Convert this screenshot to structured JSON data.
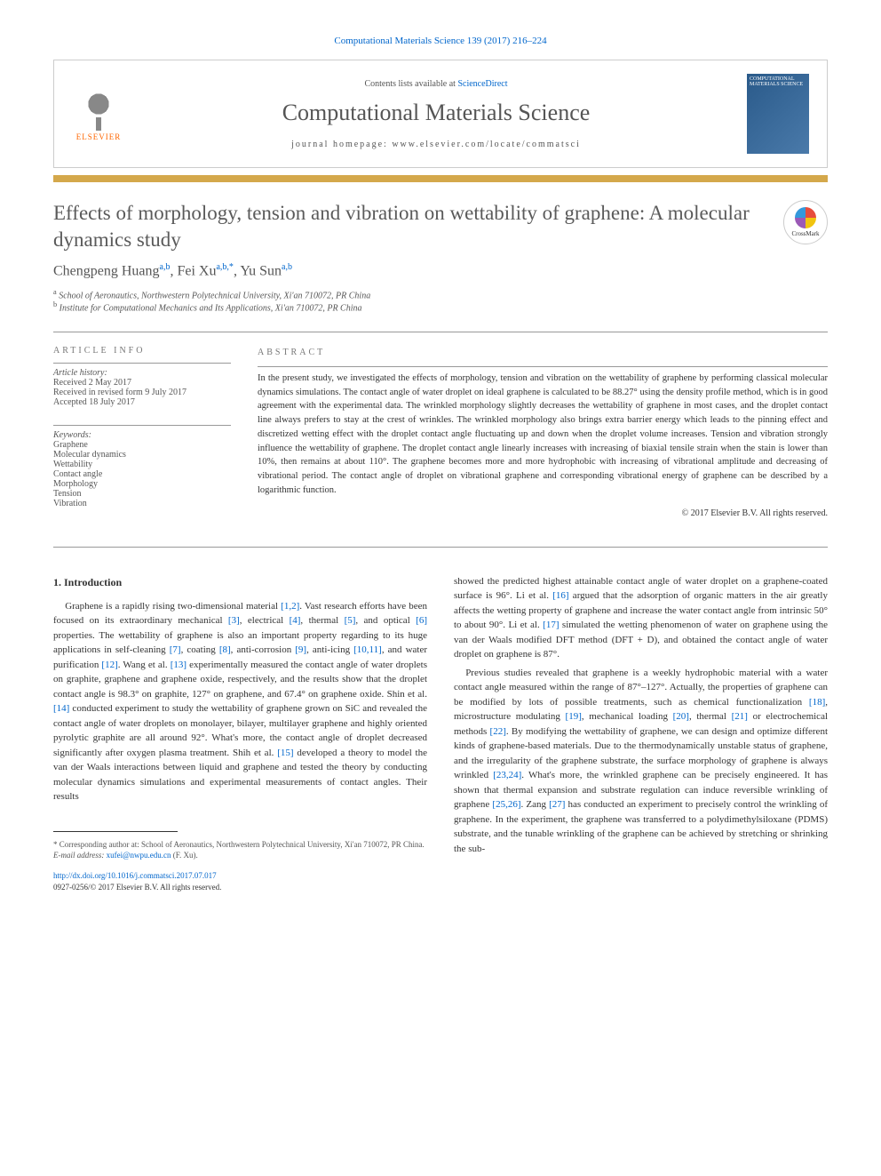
{
  "citation": "Computational Materials Science 139 (2017) 216–224",
  "banner": {
    "contents_prefix": "Contents lists available at ",
    "contents_link": "ScienceDirect",
    "journal_name": "Computational Materials Science",
    "homepage_prefix": "journal homepage: ",
    "homepage_url": "www.elsevier.com/locate/commatsci",
    "publisher": "ELSEVIER",
    "cover_label": "COMPUTATIONAL MATERIALS SCIENCE"
  },
  "title": "Effects of morphology, tension and vibration on wettability of graphene: A molecular dynamics study",
  "crossmark_label": "CrossMark",
  "authors_html": "Chengpeng Huang",
  "authors": [
    {
      "name": "Chengpeng Huang",
      "affs": "a,b"
    },
    {
      "name": "Fei Xu",
      "affs": "a,b,*"
    },
    {
      "name": "Yu Sun",
      "affs": "a,b"
    }
  ],
  "affiliations": [
    {
      "sup": "a",
      "text": "School of Aeronautics, Northwestern Polytechnical University, Xi'an 710072, PR China"
    },
    {
      "sup": "b",
      "text": "Institute for Computational Mechanics and Its Applications, Xi'an 710072, PR China"
    }
  ],
  "article_info": {
    "heading": "article info",
    "history_label": "Article history:",
    "received": "Received 2 May 2017",
    "revised": "Received in revised form 9 July 2017",
    "accepted": "Accepted 18 July 2017",
    "keywords_label": "Keywords:",
    "keywords": [
      "Graphene",
      "Molecular dynamics",
      "Wettability",
      "Contact angle",
      "Morphology",
      "Tension",
      "Vibration"
    ]
  },
  "abstract": {
    "heading": "abstract",
    "text": "In the present study, we investigated the effects of morphology, tension and vibration on the wettability of graphene by performing classical molecular dynamics simulations. The contact angle of water droplet on ideal graphene is calculated to be 88.27° using the density profile method, which is in good agreement with the experimental data. The wrinkled morphology slightly decreases the wettability of graphene in most cases, and the droplet contact line always prefers to stay at the crest of wrinkles. The wrinkled morphology also brings extra barrier energy which leads to the pinning effect and discretized wetting effect with the droplet contact angle fluctuating up and down when the droplet volume increases. Tension and vibration strongly influence the wettability of graphene. The droplet contact angle linearly increases with increasing of biaxial tensile strain when the stain is lower than 10%, then remains at about 110°. The graphene becomes more and more hydrophobic with increasing of vibrational amplitude and decreasing of vibrational period. The contact angle of droplet on vibrational graphene and corresponding vibrational energy of graphene can be described by a logarithmic function.",
    "copyright": "© 2017 Elsevier B.V. All rights reserved."
  },
  "body": {
    "section_num": "1.",
    "section_title": "Introduction",
    "left_col": "Graphene is a rapidly rising two-dimensional material [1,2]. Vast research efforts have been focused on its extraordinary mechanical [3], electrical [4], thermal [5], and optical [6] properties. The wettability of graphene is also an important property regarding to its huge applications in self-cleaning [7], coating [8], anti-corrosion [9], anti-icing [10,11], and water purification [12]. Wang et al. [13] experimentally measured the contact angle of water droplets on graphite, graphene and graphene oxide, respectively, and the results show that the droplet contact angle is 98.3° on graphite, 127° on graphene, and 67.4° on graphene oxide. Shin et al. [14] conducted experiment to study the wettability of graphene grown on SiC and revealed the contact angle of water droplets on monolayer, bilayer, multilayer graphene and highly oriented pyrolytic graphite are all around 92°. What's more, the contact angle of droplet decreased significantly after oxygen plasma treatment. Shih et al. [15] developed a theory to model the van der Waals interactions between liquid and graphene and tested the theory by conducting molecular dynamics simulations and experimental measurements of contact angles. Their results",
    "right_col_p1": "showed the predicted highest attainable contact angle of water droplet on a graphene-coated surface is 96°. Li et al. [16] argued that the adsorption of organic matters in the air greatly affects the wetting property of graphene and increase the water contact angle from intrinsic 50° to about 90°. Li et al. [17] simulated the wetting phenomenon of water on graphene using the van der Waals modified DFT method (DFT + D), and obtained the contact angle of water droplet on graphene is 87°.",
    "right_col_p2": "Previous studies revealed that graphene is a weekly hydrophobic material with a water contact angle measured within the range of 87°–127°. Actually, the properties of graphene can be modified by lots of possible treatments, such as chemical functionalization [18], microstructure modulating [19], mechanical loading [20], thermal [21] or electrochemical methods [22]. By modifying the wettability of graphene, we can design and optimize different kinds of graphene-based materials. Due to the thermodynamically unstable status of graphene, and the irregularity of the graphene substrate, the surface morphology of graphene is always wrinkled [23,24]. What's more, the wrinkled graphene can be precisely engineered. It has shown that thermal expansion and substrate regulation can induce reversible wrinkling of graphene [25,26]. Zang [27] has conducted an experiment to precisely control the wrinkling of graphene. In the experiment, the graphene was transferred to a polydimethylsiloxane (PDMS) substrate, and the tunable wrinkling of the graphene can be achieved by stretching or shrinking the sub-",
    "refs_left": [
      "[1,2]",
      "[3]",
      "[4]",
      "[5]",
      "[6]",
      "[7]",
      "[8]",
      "[9]",
      "[10,11]",
      "[12]",
      "[13]",
      "[14]",
      "[15]"
    ],
    "refs_right": [
      "[16]",
      "[17]",
      "[18]",
      "[19]",
      "[20]",
      "[21]",
      "[22]",
      "[23,24]",
      "[25,26]",
      "[27]"
    ]
  },
  "footnotes": {
    "corresponding": "* Corresponding author at: School of Aeronautics, Northwestern Polytechnical University, Xi'an 710072, PR China.",
    "email_label": "E-mail address: ",
    "email": "xufei@nwpu.edu.cn",
    "email_suffix": " (F. Xu).",
    "doi": "http://dx.doi.org/10.1016/j.commatsci.2017.07.017",
    "issn": "0927-0256/© 2017 Elsevier B.V. All rights reserved."
  },
  "colors": {
    "link": "#0066cc",
    "gold": "#d4a84b",
    "elsevier": "#ff6600"
  }
}
